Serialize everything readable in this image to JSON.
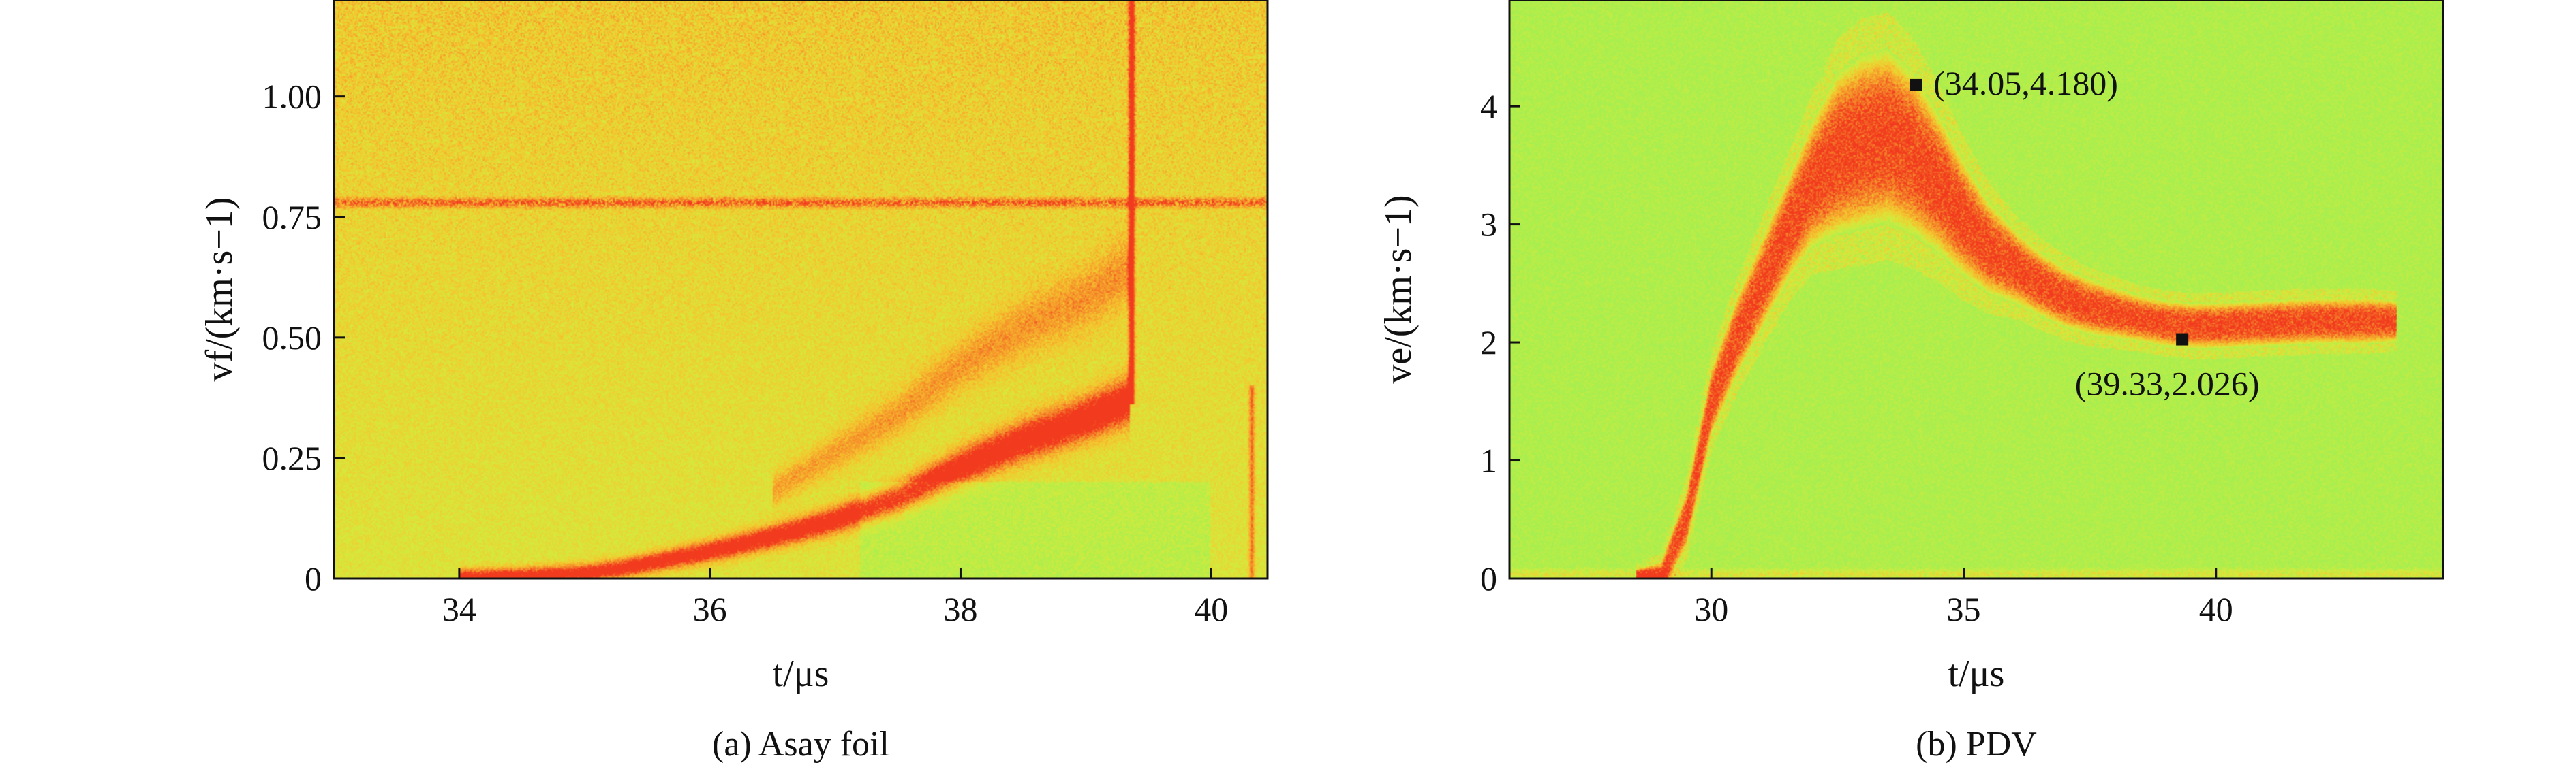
{
  "chart_data": [
    {
      "type": "heatmap",
      "panel": "(a)",
      "caption": "(a) Asay foil",
      "xlabel": "t/μs",
      "ylabel": "vf/(km·s−1)",
      "xlim": [
        33.0,
        40.45
      ],
      "ylim": [
        0,
        1.2
      ],
      "xticks": [
        "34",
        "36",
        "38",
        "40"
      ],
      "yticks": [
        "0",
        "0.25",
        "0.50",
        "0.75",
        "1.00"
      ],
      "colormap": [
        "#a6ef50",
        "#d6ea3c",
        "#f5c62e",
        "#f58b2a",
        "#f23a1e"
      ],
      "background_level": 0.3,
      "features": [
        {
          "kind": "curve",
          "name": "foil velocity trace",
          "x": [
            34.0,
            34.5,
            35.0,
            35.3,
            35.6,
            36.0,
            36.5,
            37.0,
            37.5,
            38.0,
            38.5,
            39.0,
            39.35
          ],
          "y": [
            0.0,
            0.003,
            0.01,
            0.02,
            0.035,
            0.055,
            0.085,
            0.12,
            0.165,
            0.23,
            0.285,
            0.33,
            0.37
          ],
          "intensity": 1.0
        },
        {
          "kind": "curve",
          "name": "faint harmonic",
          "x": [
            36.5,
            37.0,
            37.5,
            38.0,
            38.5,
            39.0,
            39.35
          ],
          "y": [
            0.18,
            0.26,
            0.34,
            0.44,
            0.52,
            0.58,
            0.64
          ],
          "intensity": 0.35
        },
        {
          "kind": "hline",
          "name": "baseline line",
          "y": 0.78,
          "x": [
            33.0,
            40.45
          ],
          "intensity": 0.55
        },
        {
          "kind": "vline",
          "name": "impact jump",
          "x": 39.37,
          "y": [
            0.36,
            1.2
          ],
          "intensity": 0.95
        },
        {
          "kind": "vline",
          "name": "edge line",
          "x": 40.33,
          "y": [
            0.0,
            0.4
          ],
          "intensity": 0.5
        }
      ]
    },
    {
      "type": "heatmap",
      "panel": "(b)",
      "caption": "(b) PDV",
      "xlabel": "t/μs",
      "ylabel": "ve/(km·s−1)",
      "xlim": [
        26.0,
        44.5
      ],
      "ylim": [
        0,
        4.9
      ],
      "xticks": [
        "30",
        "35",
        "40"
      ],
      "yticks": [
        "0",
        "1",
        "2",
        "3",
        "4"
      ],
      "colormap": [
        "#a6ef50",
        "#d6ea3c",
        "#f5c62e",
        "#f58b2a",
        "#f23a1e"
      ],
      "background_level": 0.05,
      "features": [
        {
          "kind": "band",
          "name": "velocity band",
          "x": [
            28.5,
            29.0,
            29.5,
            30.0,
            30.5,
            31.0,
            31.5,
            32.0,
            32.5,
            33.0,
            33.5,
            34.0,
            34.5,
            35.0,
            35.5,
            36.0,
            36.5,
            37.0,
            37.5,
            38.0,
            38.5,
            39.0,
            39.5,
            40.0,
            41.0,
            42.0,
            43.0,
            43.6
          ],
          "y": [
            0.0,
            0.0,
            0.5,
            1.5,
            2.05,
            2.5,
            2.95,
            3.35,
            3.6,
            3.7,
            3.75,
            3.6,
            3.35,
            3.05,
            2.8,
            2.65,
            2.5,
            2.38,
            2.3,
            2.25,
            2.2,
            2.16,
            2.14,
            2.14,
            2.16,
            2.18,
            2.18,
            2.18
          ],
          "width": [
            0.08,
            0.15,
            0.25,
            0.3,
            0.35,
            0.4,
            0.45,
            0.55,
            0.7,
            0.75,
            0.75,
            0.7,
            0.6,
            0.5,
            0.4,
            0.32,
            0.28,
            0.26,
            0.24,
            0.22,
            0.2,
            0.2,
            0.2,
            0.2,
            0.2,
            0.2,
            0.2,
            0.18
          ],
          "intensity": 1.0
        },
        {
          "kind": "hline",
          "name": "faint floor",
          "y": 0.03,
          "x": [
            26.0,
            44.5
          ],
          "intensity": 0.3
        }
      ],
      "annotations": [
        {
          "label": "(34.05,4.180)",
          "x": 34.05,
          "y": 4.18,
          "text_side": "right"
        },
        {
          "label": "(39.33,2.026)",
          "x": 39.33,
          "y": 2.026,
          "text_side": "below"
        }
      ]
    }
  ]
}
